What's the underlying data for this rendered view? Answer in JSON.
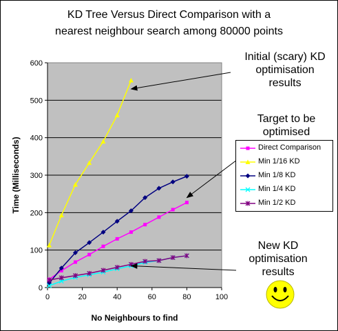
{
  "chart_data": {
    "type": "line",
    "title": [
      "KD Tree Versus Direct Comparison  with a",
      "nearest neighbour search among 80000 points"
    ],
    "xlabel": "No Neighbours to find",
    "ylabel": "Time (Milliseconds)",
    "xlim": [
      0,
      100
    ],
    "ylim": [
      0,
      600
    ],
    "xticks": [
      "0",
      "20",
      "40",
      "60",
      "80",
      "100"
    ],
    "yticks": [
      "0",
      "100",
      "200",
      "300",
      "400",
      "500",
      "600"
    ],
    "grid": "horizontal",
    "plot_background": "#c0c0c0",
    "legend_position": "right",
    "series": [
      {
        "name": "Direct Comparison",
        "color": "#ff00ff",
        "marker": "square",
        "x": [
          1,
          8,
          16,
          24,
          32,
          40,
          48,
          56,
          64,
          72,
          80
        ],
        "y": [
          22,
          45,
          68,
          88,
          110,
          130,
          148,
          168,
          188,
          208,
          227
        ]
      },
      {
        "name": "Min 1/16 KD",
        "color": "#ffff00",
        "marker": "triangle",
        "x": [
          1,
          8,
          16,
          24,
          32,
          40,
          48
        ],
        "y": [
          113,
          193,
          275,
          333,
          390,
          460,
          553
        ]
      },
      {
        "name": "Min 1/8 KD",
        "color": "#000080",
        "marker": "diamond",
        "x": [
          1,
          8,
          16,
          24,
          32,
          40,
          48,
          56,
          64,
          72,
          80
        ],
        "y": [
          12,
          52,
          93,
          120,
          148,
          177,
          205,
          240,
          265,
          282,
          297
        ]
      },
      {
        "name": "Min 1/4 KD",
        "color": "#00ffff",
        "marker": "x",
        "x": [
          1,
          8,
          16,
          24,
          32,
          40,
          48,
          56,
          64,
          72,
          80
        ],
        "y": [
          5,
          17,
          27,
          34,
          41,
          50,
          58,
          67,
          72,
          80,
          85
        ]
      },
      {
        "name": "Min 1/2 KD",
        "color": "#800080",
        "marker": "star",
        "x": [
          1,
          8,
          16,
          24,
          32,
          40,
          48,
          56,
          64,
          72,
          80
        ],
        "y": [
          20,
          26,
          32,
          38,
          46,
          54,
          62,
          70,
          72,
          80,
          85
        ]
      }
    ],
    "annotations": [
      {
        "text": [
          "Initial (scary) KD",
          "optimisation",
          "results"
        ],
        "points_to": {
          "series": "Min 1/16 KD",
          "x": 48,
          "y": 530
        }
      },
      {
        "text": [
          "Target to be",
          "optimised"
        ],
        "points_to": {
          "series": "Direct Comparison",
          "x": 80,
          "y": 240
        }
      },
      {
        "text": [
          "New KD",
          "optimisation",
          "results"
        ],
        "points_to": {
          "series": "Min 1/4 KD",
          "x": 48,
          "y": 58
        }
      }
    ],
    "smiley_face": true
  }
}
